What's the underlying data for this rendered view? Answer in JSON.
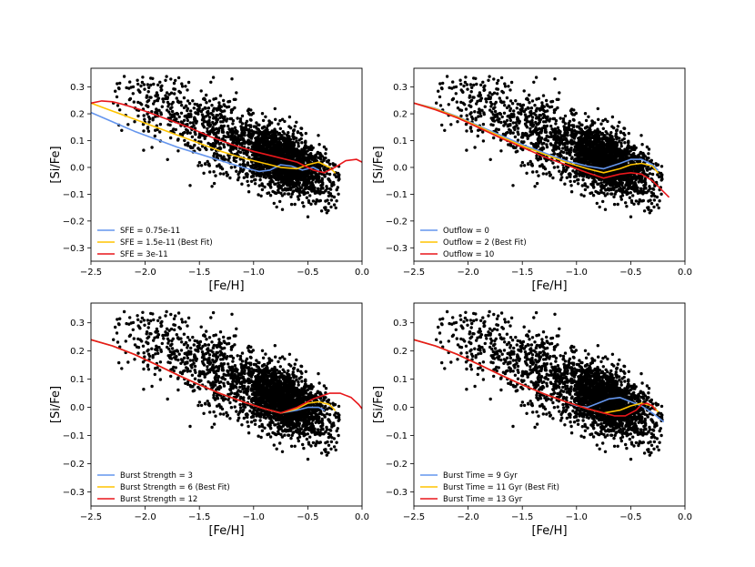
{
  "chart_data": [
    {
      "type": "line",
      "title": "",
      "xlabel": "[Fe/H]",
      "ylabel": "[Si/Fe]",
      "xlim": [
        -2.5,
        0.0
      ],
      "ylim": [
        -0.35,
        0.37
      ],
      "xticks": [
        "-2.5",
        "-2.0",
        "-1.5",
        "-1.0",
        "-0.5",
        "0.0"
      ],
      "yticks": [
        "-0.3",
        "-0.2",
        "-0.1",
        "0.0",
        "0.1",
        "0.2",
        "0.3"
      ],
      "legend": "lower-left",
      "series": [
        {
          "name": "SFE = 0.75e-11",
          "color": "#6495ED",
          "x": [
            -2.5,
            -2.3,
            -2.1,
            -1.9,
            -1.7,
            -1.5,
            -1.3,
            -1.1,
            -0.95,
            -0.85,
            -0.75,
            -0.65,
            -0.55,
            -0.45,
            -0.4
          ],
          "y": [
            0.205,
            0.17,
            0.135,
            0.105,
            0.075,
            0.05,
            0.025,
            0.0,
            -0.015,
            -0.01,
            0.01,
            0.005,
            -0.01,
            0.0,
            -0.01
          ]
        },
        {
          "name": "SFE = 1.5e-11 (Best Fit)",
          "color": "#FFC400",
          "x": [
            -2.5,
            -2.3,
            -2.1,
            -1.9,
            -1.7,
            -1.5,
            -1.3,
            -1.1,
            -0.9,
            -0.75,
            -0.6,
            -0.5,
            -0.4,
            -0.3,
            -0.25
          ],
          "y": [
            0.24,
            0.21,
            0.18,
            0.15,
            0.12,
            0.09,
            0.06,
            0.035,
            0.015,
            0.0,
            -0.005,
            0.01,
            0.02,
            0.0,
            -0.02
          ]
        },
        {
          "name": "SFE = 3e-11",
          "color": "#E8171B",
          "x": [
            -2.5,
            -2.4,
            -2.3,
            -2.2,
            -2.0,
            -1.8,
            -1.6,
            -1.4,
            -1.2,
            -1.0,
            -0.8,
            -0.6,
            -0.45,
            -0.35,
            -0.25,
            -0.15,
            -0.05,
            0.0
          ],
          "y": [
            0.24,
            0.248,
            0.245,
            0.235,
            0.21,
            0.18,
            0.15,
            0.115,
            0.085,
            0.06,
            0.04,
            0.02,
            -0.01,
            -0.02,
            0.0,
            0.025,
            0.03,
            0.02
          ]
        }
      ]
    },
    {
      "type": "line",
      "title": "",
      "xlabel": "[Fe/H]",
      "ylabel": "[Si/Fe]",
      "xlim": [
        -2.5,
        0.0
      ],
      "ylim": [
        -0.35,
        0.37
      ],
      "xticks": [
        "-2.5",
        "-2.0",
        "-1.5",
        "-1.0",
        "-0.5",
        "0.0"
      ],
      "yticks": [
        "-0.3",
        "-0.2",
        "-0.1",
        "0.0",
        "0.1",
        "0.2",
        "0.3"
      ],
      "legend": "lower-left",
      "series": [
        {
          "name": "Outflow = 0",
          "color": "#6495ED",
          "x": [
            -2.5,
            -2.3,
            -2.1,
            -1.9,
            -1.7,
            -1.5,
            -1.3,
            -1.1,
            -0.9,
            -0.75,
            -0.6,
            -0.5,
            -0.4,
            -0.3,
            -0.25
          ],
          "y": [
            0.24,
            0.22,
            0.19,
            0.155,
            0.12,
            0.085,
            0.055,
            0.025,
            0.005,
            -0.005,
            0.015,
            0.03,
            0.03,
            0.01,
            -0.01
          ]
        },
        {
          "name": "Outflow = 2 (Best Fit)",
          "color": "#FFC400",
          "x": [
            -2.5,
            -2.3,
            -2.1,
            -1.9,
            -1.7,
            -1.5,
            -1.3,
            -1.1,
            -0.9,
            -0.75,
            -0.6,
            -0.5,
            -0.4,
            -0.3,
            -0.25
          ],
          "y": [
            0.24,
            0.218,
            0.188,
            0.152,
            0.115,
            0.08,
            0.05,
            0.02,
            -0.005,
            -0.02,
            -0.005,
            0.01,
            0.015,
            0.005,
            -0.02
          ]
        },
        {
          "name": "Outflow = 10",
          "color": "#E8171B",
          "x": [
            -2.5,
            -2.3,
            -2.1,
            -1.9,
            -1.7,
            -1.5,
            -1.3,
            -1.1,
            -0.9,
            -0.75,
            -0.6,
            -0.5,
            -0.4,
            -0.3,
            -0.2,
            -0.15
          ],
          "y": [
            0.24,
            0.215,
            0.185,
            0.148,
            0.11,
            0.075,
            0.04,
            0.01,
            -0.02,
            -0.04,
            -0.025,
            -0.02,
            -0.025,
            -0.05,
            -0.09,
            -0.11
          ]
        }
      ]
    },
    {
      "type": "line",
      "title": "",
      "xlabel": "[Fe/H]",
      "ylabel": "[Si/Fe]",
      "xlim": [
        -2.5,
        0.0
      ],
      "ylim": [
        -0.35,
        0.37
      ],
      "xticks": [
        "-2.5",
        "-2.0",
        "-1.5",
        "-1.0",
        "-0.5",
        "0.0"
      ],
      "yticks": [
        "-0.3",
        "-0.2",
        "-0.1",
        "0.0",
        "0.1",
        "0.2",
        "0.3"
      ],
      "legend": "lower-left",
      "series": [
        {
          "name": "Burst Strength = 3",
          "color": "#6495ED",
          "x": [
            -2.5,
            -2.3,
            -2.1,
            -1.9,
            -1.7,
            -1.5,
            -1.3,
            -1.1,
            -0.9,
            -0.75,
            -0.6,
            -0.5,
            -0.4,
            -0.35
          ],
          "y": [
            0.24,
            0.218,
            0.188,
            0.152,
            0.115,
            0.08,
            0.048,
            0.02,
            -0.005,
            -0.02,
            -0.01,
            0.0,
            0.0,
            -0.01
          ]
        },
        {
          "name": "Burst Strength = 6 (Best Fit)",
          "color": "#FFC400",
          "x": [
            -2.5,
            -2.3,
            -2.1,
            -1.9,
            -1.7,
            -1.5,
            -1.3,
            -1.1,
            -0.9,
            -0.75,
            -0.6,
            -0.5,
            -0.4,
            -0.3,
            -0.25
          ],
          "y": [
            0.24,
            0.218,
            0.188,
            0.152,
            0.115,
            0.08,
            0.048,
            0.02,
            -0.005,
            -0.02,
            -0.005,
            0.015,
            0.02,
            0.01,
            -0.01
          ]
        },
        {
          "name": "Burst Strength = 12",
          "color": "#E8171B",
          "x": [
            -2.5,
            -2.3,
            -2.1,
            -1.9,
            -1.7,
            -1.5,
            -1.3,
            -1.1,
            -0.9,
            -0.75,
            -0.6,
            -0.45,
            -0.3,
            -0.2,
            -0.1,
            -0.03,
            0.0
          ],
          "y": [
            0.24,
            0.218,
            0.188,
            0.152,
            0.115,
            0.08,
            0.048,
            0.02,
            -0.005,
            -0.02,
            0.0,
            0.03,
            0.05,
            0.05,
            0.035,
            0.01,
            -0.005
          ]
        }
      ]
    },
    {
      "type": "line",
      "title": "",
      "xlabel": "[Fe/H]",
      "ylabel": "[Si/Fe]",
      "xlim": [
        -2.5,
        0.0
      ],
      "ylim": [
        -0.35,
        0.37
      ],
      "xticks": [
        "-2.5",
        "-2.0",
        "-1.5",
        "-1.0",
        "-0.5",
        "0.0"
      ],
      "yticks": [
        "-0.3",
        "-0.2",
        "-0.1",
        "0.0",
        "0.1",
        "0.2",
        "0.3"
      ],
      "legend": "lower-left",
      "series": [
        {
          "name": "Burst Time = 9 Gyr",
          "color": "#6495ED",
          "x": [
            -2.5,
            -2.3,
            -2.1,
            -1.9,
            -1.7,
            -1.5,
            -1.3,
            -1.1,
            -1.0,
            -0.9,
            -0.8,
            -0.7,
            -0.6,
            -0.5,
            -0.4,
            -0.3,
            -0.2
          ],
          "y": [
            0.24,
            0.218,
            0.188,
            0.152,
            0.115,
            0.08,
            0.048,
            0.02,
            0.005,
            0.0,
            0.015,
            0.03,
            0.035,
            0.02,
            0.005,
            -0.02,
            -0.05
          ]
        },
        {
          "name": "Burst Time = 11 Gyr (Best Fit)",
          "color": "#FFC400",
          "x": [
            -2.5,
            -2.3,
            -2.1,
            -1.9,
            -1.7,
            -1.5,
            -1.3,
            -1.1,
            -0.9,
            -0.75,
            -0.6,
            -0.5,
            -0.4,
            -0.3,
            -0.25
          ],
          "y": [
            0.24,
            0.218,
            0.188,
            0.152,
            0.115,
            0.08,
            0.048,
            0.02,
            -0.005,
            -0.02,
            -0.01,
            0.005,
            0.015,
            0.005,
            -0.015
          ]
        },
        {
          "name": "Burst Time = 13 Gyr",
          "color": "#E8171B",
          "x": [
            -2.5,
            -2.3,
            -2.1,
            -1.9,
            -1.7,
            -1.5,
            -1.3,
            -1.1,
            -0.9,
            -0.75,
            -0.65,
            -0.55,
            -0.45,
            -0.4,
            -0.35,
            -0.3,
            -0.27
          ],
          "y": [
            0.24,
            0.218,
            0.188,
            0.152,
            0.115,
            0.08,
            0.048,
            0.02,
            -0.005,
            -0.02,
            -0.03,
            -0.03,
            -0.01,
            0.01,
            0.015,
            0.005,
            -0.01
          ]
        }
      ]
    }
  ]
}
